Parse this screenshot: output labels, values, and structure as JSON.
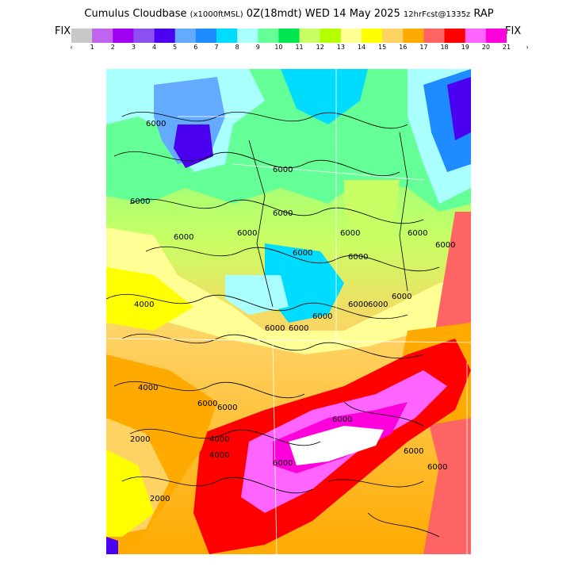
{
  "header": {
    "title": "Cumulus Cloudbase",
    "units": "(x1000ftMSL)",
    "time": "0Z(18mdt) WED 14 May 2025",
    "forecast": "12hrFcst@1335z",
    "model": "RAP"
  },
  "colorbar": {
    "fix_left": "FIX",
    "fix_right": "FIX",
    "colors": [
      "#c8c8c8",
      "#c064f0",
      "#a000f0",
      "#8c50f0",
      "#4b00f0",
      "#64aaff",
      "#1e8cff",
      "#00dcff",
      "#aaffff",
      "#64ff96",
      "#00e650",
      "#c8ff64",
      "#b4ff00",
      "#ffff96",
      "#ffff00",
      "#ffd264",
      "#ffaa00",
      "#ff6464",
      "#ff0000",
      "#ff64ff",
      "#ff00dc"
    ],
    "tick_labels": [
      "‹",
      "1",
      "2",
      "3",
      "4",
      "5",
      "6",
      "7",
      "8",
      "9",
      "10",
      "11",
      "12",
      "13",
      "14",
      "15",
      "16",
      "17",
      "18",
      "19",
      "20",
      "21",
      "›"
    ]
  },
  "map": {
    "contour_labels": [
      "6000",
      "6000",
      "6000",
      "6000",
      "6000",
      "6000",
      "6000",
      "6000",
      "6000",
      "6000",
      "6000",
      "6000",
      "6000",
      "6000",
      "6000",
      "6000",
      "6000",
      "4000",
      "4000",
      "4000",
      "6000",
      "6000",
      "2000",
      "2000",
      "4000",
      "6000",
      "6000",
      "6000",
      "6000"
    ]
  }
}
